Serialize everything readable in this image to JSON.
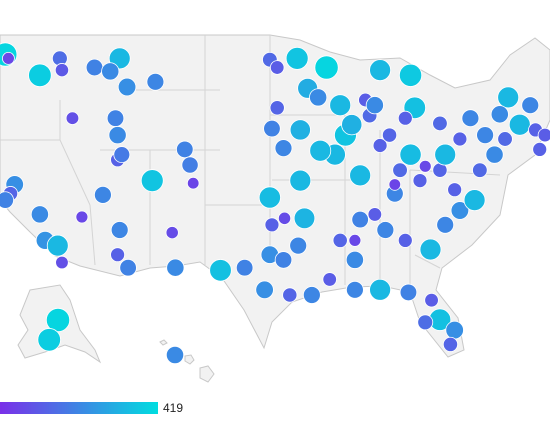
{
  "chart_data": {
    "type": "bubble-map",
    "lon": [
      -122.5,
      -122.2,
      -119.2,
      -117.3,
      -117.1,
      -114,
      -111.6,
      -112.5,
      -110.9,
      -108.2,
      -116.1,
      -112,
      -111.8,
      -111.8,
      -111.4,
      -105.4,
      -104.9,
      -108.5,
      -104.6,
      -121.6,
      -122,
      -122.5,
      -119.2,
      -118.7,
      -117.5,
      -117.1,
      -115.2,
      -113.2,
      -111.6,
      -111.8,
      -110.8,
      -106.6,
      -106.3,
      -102,
      -99.7,
      -97.3,
      -96.6,
      -94.7,
      -91.9,
      -93.7,
      -92.7,
      -96.6,
      -97.1,
      -96,
      -94.4,
      -97.3,
      -97.1,
      -95.9,
      -94,
      -97.3,
      -96,
      -94.6,
      -97.8,
      -95.4,
      -93.3,
      -91.6,
      -89.2,
      -86.8,
      -84.1,
      -81.9,
      -81.1,
      -79.7,
      -80.1,
      -82.5,
      -91.1,
      -90.1,
      -87.8,
      -89.5,
      -86.8,
      -84.9,
      -83,
      -81.1,
      -85.4,
      -87.3,
      -88.7,
      -90.6,
      -89.2,
      -86.3,
      -84.4,
      -82,
      -80.6,
      -79.2,
      -77.8,
      -79.7,
      -77.3,
      -75.9,
      -74.9,
      -73.5,
      -72,
      -71.1,
      -72.5,
      -74.6,
      -78.2,
      -81.1,
      -83.5,
      -84.4,
      -83.9,
      -86.8,
      -88.2,
      -90.6,
      -87.3,
      -92.5,
      -94.4,
      -88.7,
      -89.2,
      -82.5,
      -85.4,
      -75.4,
      -79.2,
      -76.8,
      -80.6,
      -83.9,
      -85.9,
      -71.6,
      -147.7,
      -149.9,
      -157.8
    ],
    "lat": [
      47.5,
      47.2,
      45.9,
      47.2,
      46.3,
      46.5,
      47.2,
      46.2,
      45,
      45.4,
      42.6,
      42.6,
      41.3,
      39.4,
      39.8,
      40.2,
      39,
      37.8,
      37.6,
      37.5,
      36.8,
      36.3,
      35.2,
      33.2,
      32.8,
      31.5,
      35,
      36.7,
      34,
      32.1,
      31.1,
      33.8,
      31.1,
      30.9,
      31.1,
      47.1,
      46.5,
      47.2,
      46.5,
      44.9,
      44.2,
      43.4,
      41.8,
      40.3,
      37.8,
      36.5,
      34.4,
      34.9,
      34.9,
      32.1,
      31.7,
      32.8,
      29.4,
      29,
      29,
      30.2,
      29.4,
      29.4,
      29.2,
      28.6,
      27.1,
      26.3,
      25.2,
      26.9,
      39.8,
      41.3,
      42.8,
      42.1,
      40.5,
      38.6,
      37.8,
      38.6,
      36.8,
      35.2,
      34.8,
      33.2,
      31.7,
      34,
      33.2,
      32.5,
      34.4,
      35.5,
      36.3,
      37.1,
      38.6,
      39.8,
      41,
      42.1,
      41.7,
      41.3,
      43.6,
      44.2,
      42.6,
      42.2,
      43.4,
      42.6,
      45.9,
      46.3,
      44,
      43.6,
      43.6,
      40.1,
      41.7,
      38.2,
      33.2,
      38.9,
      37.5,
      42.9,
      41,
      41.3,
      39.8,
      39.8,
      41.3,
      40.2,
      64.8,
      61.2,
      21.3
    ],
    "values": [
      400,
      60,
      380,
      150,
      100,
      200,
      330,
      220,
      230,
      210,
      80,
      200,
      220,
      120,
      180,
      200,
      190,
      360,
      50,
      230,
      130,
      200,
      220,
      240,
      330,
      80,
      60,
      210,
      210,
      120,
      200,
      70,
      220,
      350,
      200,
      140,
      110,
      360,
      400,
      300,
      220,
      130,
      200,
      210,
      330,
      340,
      120,
      70,
      320,
      230,
      200,
      210,
      230,
      130,
      210,
      110,
      210,
      330,
      200,
      110,
      350,
      230,
      130,
      150,
      330,
      360,
      140,
      310,
      120,
      140,
      120,
      130,
      210,
      110,
      200,
      130,
      220,
      210,
      120,
      330,
      210,
      230,
      330,
      120,
      140,
      220,
      140,
      330,
      120,
      110,
      210,
      330,
      210,
      140,
      350,
      120,
      370,
      330,
      110,
      330,
      220,
      330,
      310,
      330,
      60,
      60,
      50,
      220,
      120,
      210,
      330,
      340,
      130,
      120,
      400,
      380,
      220
    ],
    "colors": [
      "#7a2fe8",
      "#00dde0"
    ],
    "colorlim": [
      0,
      419
    ],
    "colorticks": [
      419
    ]
  }
}
